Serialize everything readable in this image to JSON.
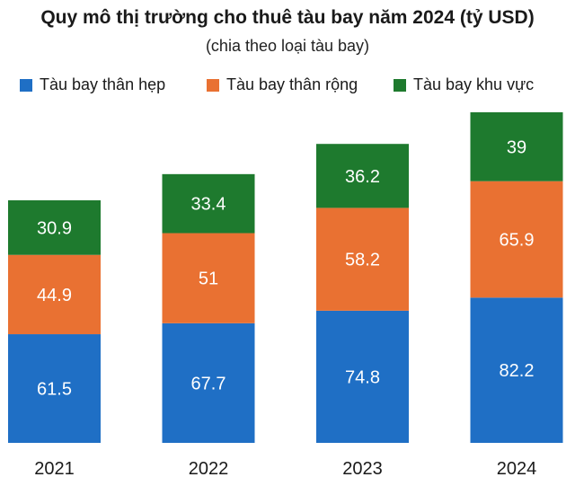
{
  "chart_data": {
    "type": "bar",
    "stacked": true,
    "title": "Quy mô thị trường cho thuê tàu bay năm 2024 (tỷ USD)",
    "subtitle": "(chia theo loại tàu bay)",
    "categories": [
      "2021",
      "2022",
      "2023",
      "2024"
    ],
    "series": [
      {
        "name": "Tàu bay thân hẹp",
        "color": "#1f6fc5",
        "values": [
          61.5,
          67.7,
          74.8,
          82.2
        ]
      },
      {
        "name": "Tàu bay thân rộng",
        "color": "#e97132",
        "values": [
          44.9,
          51,
          58.2,
          65.9
        ]
      },
      {
        "name": "Tàu bay khu vực",
        "color": "#1e7a2e",
        "values": [
          30.9,
          33.4,
          36.2,
          39
        ]
      }
    ],
    "xlabel": "",
    "ylabel": "",
    "ylim": [
      0,
      187.1
    ],
    "legend": "top",
    "grid": false
  }
}
